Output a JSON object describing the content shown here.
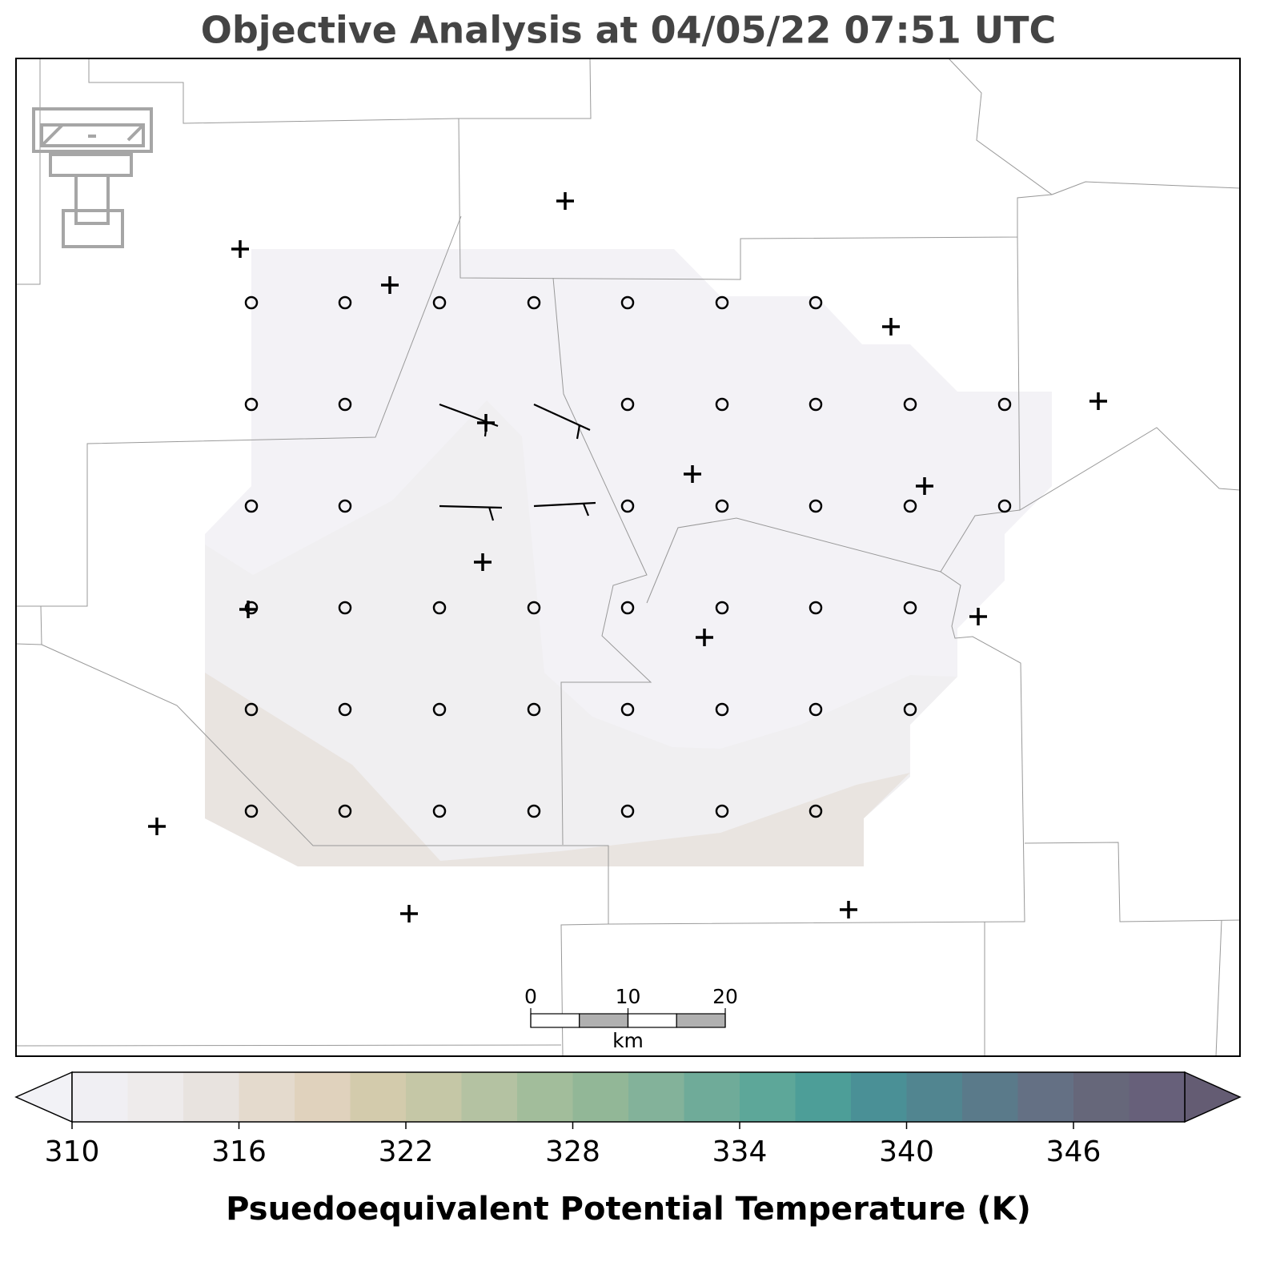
{
  "title": "Objective Analysis at 04/05/22 07:51 UTC",
  "colorbar": {
    "label": "Psuedoequivalent Potential Temperature (K)",
    "levels": [
      310,
      312,
      314,
      316,
      318,
      320,
      322,
      324,
      326,
      328,
      330,
      332,
      334,
      336,
      338,
      340,
      342,
      344,
      346,
      348,
      350
    ],
    "colors": [
      "#f0eff3",
      "#eeebeb",
      "#e8e3df",
      "#e4dacd",
      "#e0d2bd",
      "#d3cbac",
      "#c5c7a6",
      "#b4c2a2",
      "#a2bd9b",
      "#92b797",
      "#83b29a",
      "#6fab99",
      "#5da799",
      "#4d9e98",
      "#4a9096",
      "#518590",
      "#5a7a8a",
      "#647084",
      "#66677a",
      "#67607a"
    ],
    "under_color": "#f2f2f6",
    "over_color": "#645c73",
    "ticks": [
      310,
      316,
      322,
      328,
      334,
      340,
      346
    ]
  },
  "scale_bar": {
    "ticks": [
      0,
      10,
      20
    ],
    "unit": "km"
  }
}
